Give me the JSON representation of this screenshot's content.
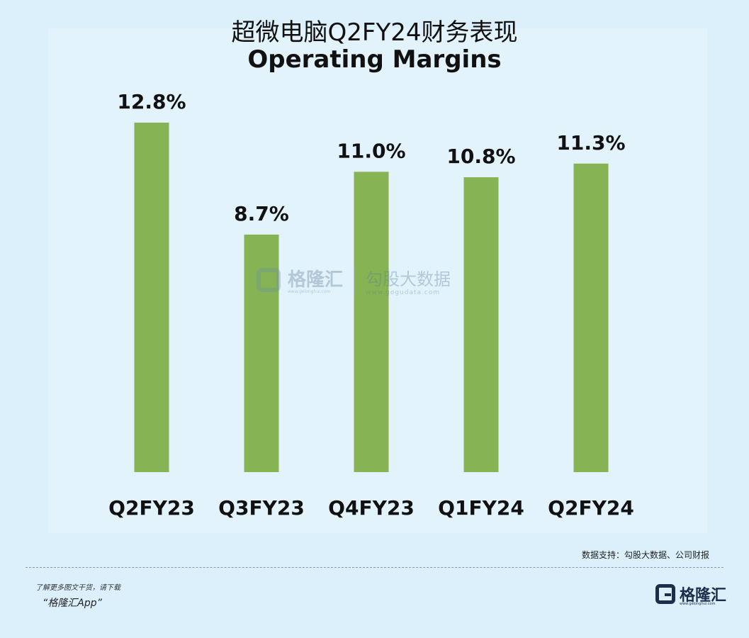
{
  "page_title": "超微电脑Q2FY24财务表现",
  "watermark": {
    "brand": "格隆汇",
    "brand_url": "www.gelonghui.com",
    "gogu": "勾股大数据",
    "gogu_url": "www.gogudata.com"
  },
  "source": "数据支持：勾股大数据、公司财报",
  "footer": {
    "promo_line": "了解更多图文干货，请下载",
    "app_name": "“格隆汇App”",
    "logo_text": "格隆汇",
    "logo_url": "www.gelonghui.com"
  },
  "colors": {
    "background": "#dcf0fc",
    "bar": "#86b454",
    "text": "#111111"
  },
  "chart_data": {
    "type": "bar",
    "title": "Operating Margins",
    "categories": [
      "Q2FY23",
      "Q3FY23",
      "Q4FY23",
      "Q1FY24",
      "Q2FY24"
    ],
    "values": [
      12.8,
      8.7,
      11.0,
      10.8,
      11.3
    ],
    "data_labels": [
      "12.8%",
      "8.7%",
      "11.0%",
      "10.8%",
      "11.3%"
    ],
    "xlabel": "",
    "ylabel": "",
    "ylim": [
      0,
      12.8
    ],
    "grid": false,
    "legend": "none"
  }
}
